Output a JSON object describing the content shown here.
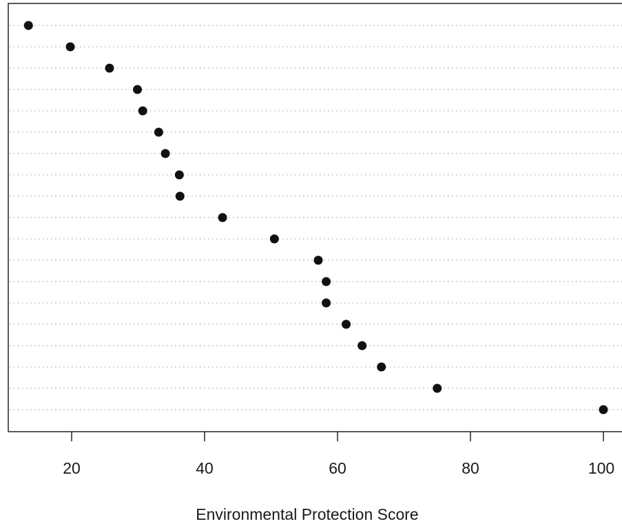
{
  "chart_data": {
    "type": "scatter",
    "title": "",
    "xlabel": "Environmental Protection Score",
    "ylabel": "",
    "xlim": [
      12,
      102
    ],
    "x_ticks": [
      20,
      40,
      60,
      80,
      100
    ],
    "x_tick_labels": [
      "20",
      "40",
      "60",
      "80",
      "100"
    ],
    "grid": "horizontal dotted lines at each row",
    "legend": "none",
    "series": [
      {
        "values": [
          13.5,
          19.8,
          25.7,
          29.9,
          30.7,
          33.1,
          34.1,
          36.2,
          36.3,
          42.7,
          50.5,
          57.1,
          58.3,
          58.3,
          61.3,
          63.7,
          66.6,
          75,
          100
        ]
      }
    ],
    "colors": {
      "point": "#111111",
      "grid": "#9a9a9a",
      "axis": "#222222",
      "background": "#ffffff"
    }
  }
}
